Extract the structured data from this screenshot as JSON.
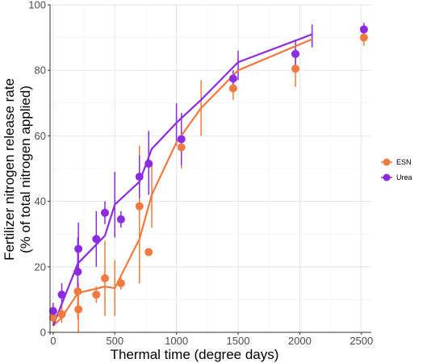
{
  "chart_data": {
    "type": "scatter",
    "xlabel": "Thermal time (degree days)",
    "ylabel_lines": [
      "Fertilizer nitrogen release rate",
      "(% of total nitrogen applied)"
    ],
    "xlim": [
      -25,
      2580
    ],
    "ylim": [
      0,
      100
    ],
    "xticks": [
      0,
      500,
      1000,
      1500,
      2000,
      2500
    ],
    "yticks": [
      0,
      20,
      40,
      60,
      80,
      100
    ],
    "grid": true,
    "legend_position": "right",
    "series": [
      {
        "name": "ESN",
        "color": "#F07A3F",
        "points": [
          {
            "x": 0,
            "y": 4.5,
            "lo": 2,
            "hi": 7
          },
          {
            "x": 70,
            "y": 5.5,
            "lo": 3,
            "hi": 8
          },
          {
            "x": 200,
            "y": 12.5,
            "lo": 5,
            "hi": 19
          },
          {
            "x": 205,
            "y": 7,
            "lo": 0,
            "hi": 15
          },
          {
            "x": 350,
            "y": 11.5,
            "lo": 9,
            "hi": 14
          },
          {
            "x": 420,
            "y": 16.5,
            "lo": 5,
            "hi": 28
          },
          {
            "x": 550,
            "y": 15,
            "lo": 13,
            "hi": 17
          },
          {
            "x": 700,
            "y": 38.5,
            "lo": 15,
            "hi": 57
          },
          {
            "x": 775,
            "y": 24.5,
            "lo": 24.5,
            "hi": 24.5
          },
          {
            "x": 1040,
            "y": 56.5,
            "lo": 50,
            "hi": 62
          },
          {
            "x": 1460,
            "y": 74.5,
            "lo": 71,
            "hi": 79
          },
          {
            "x": 1965,
            "y": 80.5,
            "lo": 75,
            "hi": 86
          },
          {
            "x": 2520,
            "y": 90,
            "lo": 87.5,
            "hi": 92.5
          }
        ],
        "fit_line": [
          [
            0,
            2
          ],
          [
            70,
            4.5
          ],
          [
            200,
            12
          ],
          [
            420,
            14
          ],
          [
            500,
            13.5
          ],
          [
            700,
            28.5
          ],
          [
            800,
            42
          ],
          [
            1000,
            58
          ],
          [
            1200,
            68.5
          ],
          [
            1500,
            80
          ],
          [
            2100,
            89.5
          ]
        ],
        "line_ranges": [
          {
            "x": 200,
            "lo": 4,
            "hi": 16
          },
          {
            "x": 500,
            "lo": 5,
            "hi": 22
          },
          {
            "x": 800,
            "lo": 32,
            "hi": 52
          },
          {
            "x": 1200,
            "lo": 60,
            "hi": 77
          }
        ]
      },
      {
        "name": "Urea",
        "color": "#8B2BE2",
        "points": [
          {
            "x": 0,
            "y": 6.5,
            "lo": 4,
            "hi": 9
          },
          {
            "x": 70,
            "y": 11.5,
            "lo": 8,
            "hi": 15
          },
          {
            "x": 200,
            "y": 18.5,
            "lo": 12,
            "hi": 25
          },
          {
            "x": 205,
            "y": 25.5,
            "lo": 18,
            "hi": 33.5
          },
          {
            "x": 350,
            "y": 28.5,
            "lo": 20,
            "hi": 37
          },
          {
            "x": 420,
            "y": 36.5,
            "lo": 33,
            "hi": 40
          },
          {
            "x": 550,
            "y": 34.5,
            "lo": 32,
            "hi": 37
          },
          {
            "x": 700,
            "y": 47.5,
            "lo": 41,
            "hi": 54
          },
          {
            "x": 775,
            "y": 51.5,
            "lo": 42,
            "hi": 61.5
          },
          {
            "x": 1040,
            "y": 59,
            "lo": 51,
            "hi": 67
          },
          {
            "x": 1460,
            "y": 77.5,
            "lo": 75,
            "hi": 80
          },
          {
            "x": 1965,
            "y": 85,
            "lo": 81,
            "hi": 89
          },
          {
            "x": 2520,
            "y": 92.5,
            "lo": 90.5,
            "hi": 94.5
          }
        ],
        "fit_line": [
          [
            0,
            2
          ],
          [
            200,
            21
          ],
          [
            420,
            29.5
          ],
          [
            500,
            39
          ],
          [
            700,
            46
          ],
          [
            800,
            56
          ],
          [
            1000,
            64
          ],
          [
            1200,
            71
          ],
          [
            1500,
            82.5
          ],
          [
            2100,
            91
          ]
        ],
        "line_ranges": [
          {
            "x": 200,
            "lo": 13,
            "hi": 29
          },
          {
            "x": 500,
            "lo": 29,
            "hi": 49
          },
          {
            "x": 1000,
            "lo": 57,
            "hi": 70
          },
          {
            "x": 1500,
            "lo": 77,
            "hi": 86
          },
          {
            "x": 2100,
            "lo": 87,
            "hi": 94
          }
        ]
      }
    ]
  }
}
